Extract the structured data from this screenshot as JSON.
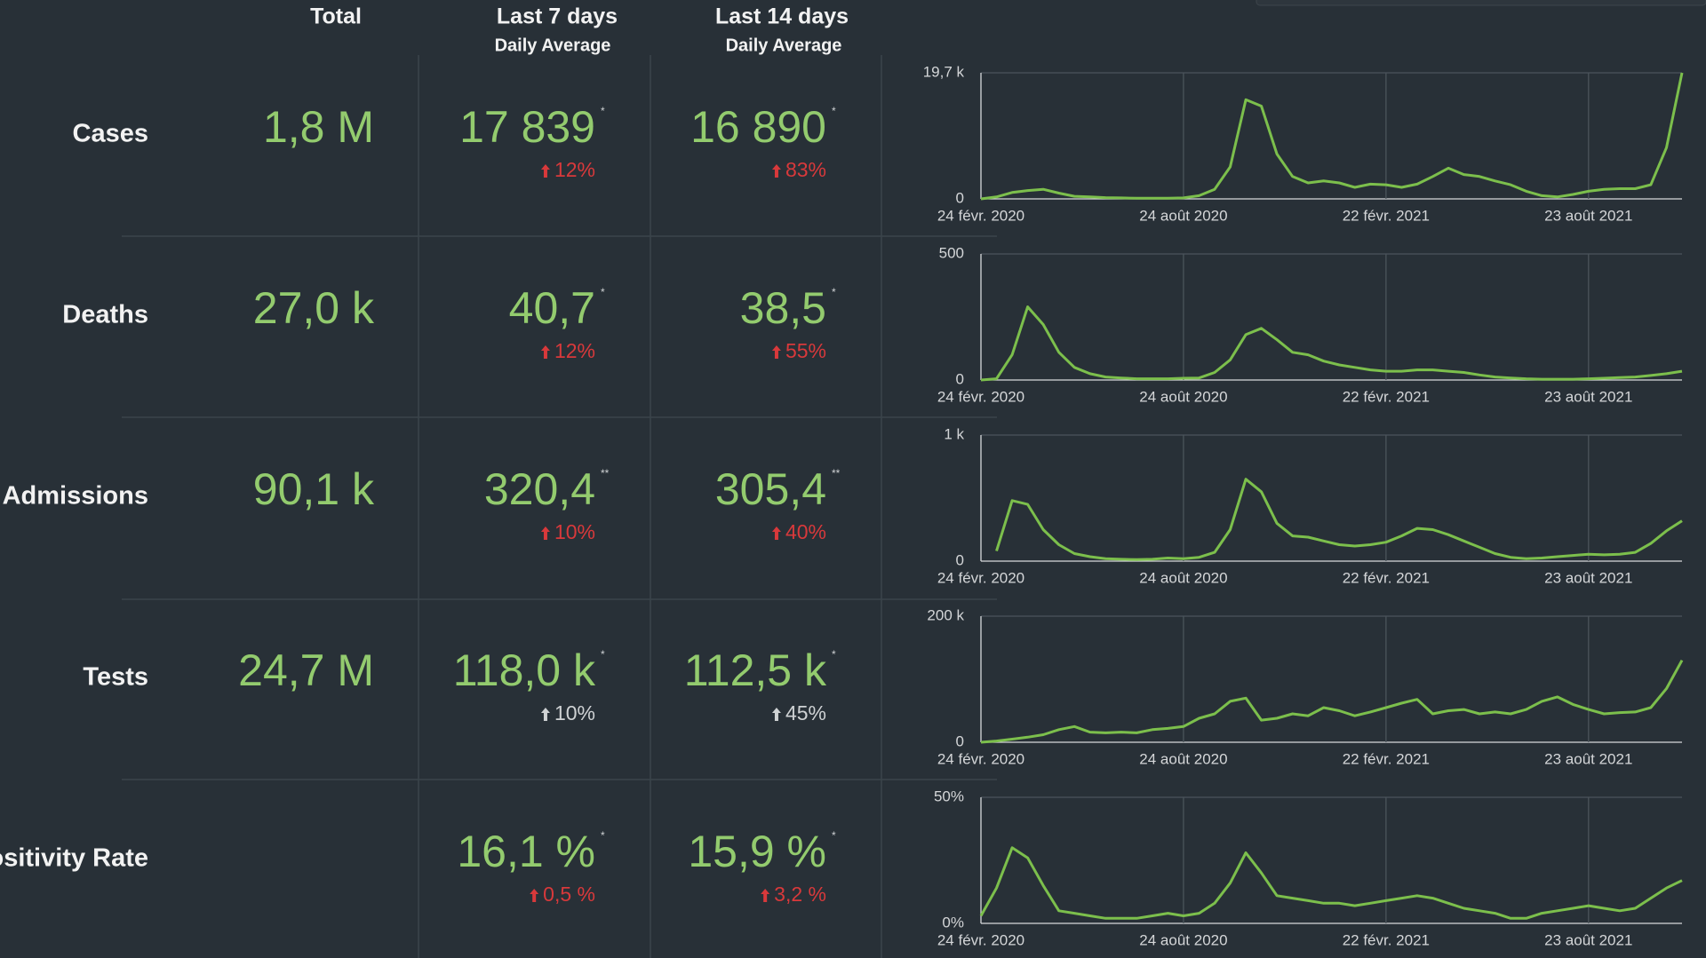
{
  "header": {
    "total": "Total",
    "columns": [
      {
        "title": "Last 7 days",
        "subtitle": "Daily Average"
      },
      {
        "title": "Last 14 days",
        "subtitle": "Daily Average"
      }
    ]
  },
  "rows": [
    {
      "label": "Cases",
      "total": "1,8 M",
      "last7": {
        "value": "17 839",
        "note": "*",
        "change": "12%",
        "change_color": "#d8393b"
      },
      "last14": {
        "value": "16 890",
        "note": "*",
        "change": "83%",
        "change_color": "#d8393b"
      }
    },
    {
      "label": "Deaths",
      "total": "27,0 k",
      "last7": {
        "value": "40,7",
        "note": "*",
        "change": "12%",
        "change_color": "#d8393b"
      },
      "last14": {
        "value": "38,5",
        "note": "*",
        "change": "55%",
        "change_color": "#d8393b"
      }
    },
    {
      "label": "Hospital Admissions",
      "total": "90,1 k",
      "last7": {
        "value": "320,4",
        "note": "**",
        "change": "10%",
        "change_color": "#d8393b"
      },
      "last14": {
        "value": "305,4",
        "note": "**",
        "change": "40%",
        "change_color": "#d8393b"
      }
    },
    {
      "label": "Tests",
      "total": "24,7 M",
      "last7": {
        "value": "118,0 k",
        "note": "*",
        "change": "10%",
        "change_color": "#cfd2d4"
      },
      "last14": {
        "value": "112,5 k",
        "note": "*",
        "change": "45%",
        "change_color": "#cfd2d4"
      }
    },
    {
      "label": "Positivity Rate",
      "last7": {
        "value": "16,1 %",
        "note": "*",
        "change": "0,5 %",
        "change_color": "#d8393b"
      },
      "last14": {
        "value": "15,9 %",
        "note": "*",
        "change": "3,2 %",
        "change_color": "#d8393b"
      }
    }
  ],
  "chart_data": [
    {
      "type": "line",
      "color": "#7cbf4c",
      "grid": true,
      "values": [
        0,
        300,
        1000,
        1300,
        1500,
        900,
        400,
        300,
        200,
        150,
        100,
        100,
        100,
        150,
        500,
        1500,
        5000,
        15500,
        14500,
        7000,
        3500,
        2500,
        2800,
        2500,
        1800,
        2300,
        2200,
        1800,
        2300,
        3500,
        4800,
        3800,
        3500,
        2800,
        2200,
        1200,
        500,
        300,
        700,
        1200,
        1500,
        1600,
        1600,
        2200,
        8000,
        19700
      ],
      "ylim": [
        0,
        19700
      ],
      "yticks": [
        0,
        {
          "value": 19700,
          "label": "19,7 k"
        }
      ],
      "xlim": [
        0,
        45
      ],
      "xticks": [
        {
          "value": 0,
          "label": "24 févr. 2020"
        },
        {
          "value": 13,
          "label": "24 août 2020"
        },
        {
          "value": 26,
          "label": "22 févr. 2021"
        },
        {
          "value": 39,
          "label": "23 août 2021"
        }
      ]
    },
    {
      "type": "line",
      "color": "#7cbf4c",
      "grid": true,
      "values": [
        0,
        5,
        100,
        290,
        220,
        110,
        50,
        25,
        12,
        8,
        5,
        5,
        5,
        7,
        8,
        30,
        80,
        180,
        205,
        160,
        110,
        100,
        75,
        60,
        50,
        40,
        35,
        35,
        40,
        40,
        35,
        30,
        20,
        12,
        8,
        5,
        3,
        3,
        3,
        5,
        7,
        10,
        12,
        18,
        25,
        35
      ],
      "ylim": [
        0,
        500
      ],
      "yticks": [
        0,
        500
      ],
      "xlim": [
        0,
        45
      ],
      "xticks": [
        {
          "value": 0,
          "label": "24 févr. 2020"
        },
        {
          "value": 13,
          "label": "24 août 2020"
        },
        {
          "value": 26,
          "label": "22 févr. 2021"
        },
        {
          "value": 39,
          "label": "23 août 2021"
        }
      ]
    },
    {
      "type": "line",
      "color": "#7cbf4c",
      "grid": true,
      "values": [
        null,
        80,
        480,
        450,
        250,
        130,
        60,
        35,
        20,
        15,
        12,
        15,
        25,
        20,
        30,
        70,
        250,
        650,
        550,
        300,
        200,
        190,
        160,
        130,
        120,
        130,
        150,
        200,
        260,
        250,
        210,
        160,
        110,
        60,
        30,
        20,
        25,
        35,
        45,
        55,
        50,
        55,
        70,
        140,
        240,
        320
      ],
      "ylim": [
        0,
        1000
      ],
      "yticks": [
        0,
        {
          "value": 1000,
          "label": "1 k"
        }
      ],
      "xlim": [
        0,
        45
      ],
      "xticks": [
        {
          "value": 0,
          "label": "24 févr. 2020"
        },
        {
          "value": 13,
          "label": "24 août 2020"
        },
        {
          "value": 26,
          "label": "22 févr. 2021"
        },
        {
          "value": 39,
          "label": "23 août 2021"
        }
      ]
    },
    {
      "type": "line",
      "color": "#7cbf4c",
      "grid": true,
      "values": [
        0,
        2000,
        5000,
        8000,
        12000,
        20000,
        25000,
        16000,
        15000,
        16000,
        15000,
        20000,
        22000,
        25000,
        38000,
        45000,
        65000,
        70000,
        35000,
        38000,
        45000,
        42000,
        55000,
        50000,
        42000,
        48000,
        55000,
        62000,
        68000,
        45000,
        50000,
        52000,
        45000,
        48000,
        45000,
        52000,
        65000,
        72000,
        60000,
        52000,
        45000,
        47000,
        48000,
        55000,
        85000,
        130000
      ],
      "ylim": [
        0,
        200000
      ],
      "yticks": [
        0,
        {
          "value": 200000,
          "label": "200 k"
        }
      ],
      "xlim": [
        0,
        45
      ],
      "xticks": [
        {
          "value": 0,
          "label": "24 févr. 2020"
        },
        {
          "value": 13,
          "label": "24 août 2020"
        },
        {
          "value": 26,
          "label": "22 févr. 2021"
        },
        {
          "value": 39,
          "label": "23 août 2021"
        }
      ]
    },
    {
      "type": "line",
      "color": "#7cbf4c",
      "grid": true,
      "values": [
        3,
        14,
        30,
        26,
        15,
        5,
        4,
        3,
        2,
        2,
        2,
        3,
        4,
        3,
        4,
        8,
        16,
        28,
        20,
        11,
        10,
        9,
        8,
        8,
        7,
        8,
        9,
        10,
        11,
        10,
        8,
        6,
        5,
        4,
        2,
        2,
        4,
        5,
        6,
        7,
        6,
        5,
        6,
        10,
        14,
        17
      ],
      "ylim": [
        0,
        50
      ],
      "yticks": [
        {
          "value": 0,
          "label": "0%"
        },
        {
          "value": 50,
          "label": "50%"
        }
      ],
      "xlim": [
        0,
        45
      ],
      "xticks": [
        {
          "value": 0,
          "label": "24 févr. 2020"
        },
        {
          "value": 13,
          "label": "24 août 2020"
        },
        {
          "value": 26,
          "label": "22 févr. 2021"
        },
        {
          "value": 39,
          "label": "23 août 2021"
        }
      ]
    }
  ]
}
